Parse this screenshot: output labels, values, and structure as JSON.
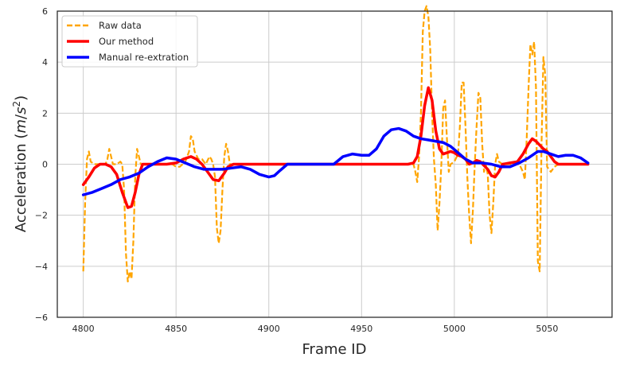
{
  "chart_data": {
    "type": "line",
    "title": "",
    "xlabel": "Frame ID",
    "ylabel_main": "Acceleration (",
    "ylabel_unit_m": "m",
    "ylabel_unit_slash": "/",
    "ylabel_unit_s": "s",
    "ylabel_unit_exp": "2",
    "ylabel_close": ")",
    "xlim": [
      4786,
      5085
    ],
    "ylim": [
      -6,
      6
    ],
    "xticks": [
      4800,
      4850,
      4900,
      4950,
      5000,
      5050
    ],
    "yticks": [
      -6,
      -4,
      -2,
      0,
      2,
      4,
      6
    ],
    "grid": true,
    "legend_position": "top-left",
    "series": [
      {
        "name": "Raw data",
        "color": "#FFA500",
        "style": "dashed",
        "points": [
          [
            4800,
            -4.2
          ],
          [
            4801,
            -1.5
          ],
          [
            4802,
            0.2
          ],
          [
            4803,
            0.5
          ],
          [
            4804,
            0.1
          ],
          [
            4806,
            0.0
          ],
          [
            4808,
            0.0
          ],
          [
            4812,
            0.0
          ],
          [
            4813,
            0.2
          ],
          [
            4814,
            0.6
          ],
          [
            4815,
            0.3
          ],
          [
            4816,
            0.0
          ],
          [
            4818,
            0.0
          ],
          [
            4820,
            0.1
          ],
          [
            4821,
            0.0
          ],
          [
            4822,
            -1.0
          ],
          [
            4823,
            -3.5
          ],
          [
            4824,
            -4.6
          ],
          [
            4825,
            -4.2
          ],
          [
            4826,
            -4.5
          ],
          [
            4827,
            -3.0
          ],
          [
            4828,
            -0.5
          ],
          [
            4829,
            0.6
          ],
          [
            4830,
            0.3
          ],
          [
            4831,
            0.0
          ],
          [
            4835,
            0.0
          ],
          [
            4848,
            0.0
          ],
          [
            4850,
            -0.1
          ],
          [
            4852,
            -0.1
          ],
          [
            4855,
            0.1
          ],
          [
            4857,
            0.5
          ],
          [
            4858,
            1.1
          ],
          [
            4859,
            1.0
          ],
          [
            4860,
            0.5
          ],
          [
            4862,
            0.2
          ],
          [
            4864,
            0.2
          ],
          [
            4866,
            0.0
          ],
          [
            4868,
            0.3
          ],
          [
            4869,
            0.2
          ],
          [
            4870,
            0.0
          ],
          [
            4871,
            -0.5
          ],
          [
            4872,
            -2.5
          ],
          [
            4873,
            -3.1
          ],
          [
            4874,
            -2.6
          ],
          [
            4875,
            -1.0
          ],
          [
            4876,
            0.3
          ],
          [
            4877,
            0.8
          ],
          [
            4878,
            0.5
          ],
          [
            4879,
            0.0
          ],
          [
            4885,
            0.0
          ],
          [
            4978,
            0.0
          ],
          [
            4979,
            -0.3
          ],
          [
            4980,
            -0.7
          ],
          [
            4981,
            0.3
          ],
          [
            4982,
            2.0
          ],
          [
            4983,
            5.2
          ],
          [
            4984,
            6.0
          ],
          [
            4985,
            6.2
          ],
          [
            4986,
            5.8
          ],
          [
            4987,
            4.5
          ],
          [
            4988,
            2.0
          ],
          [
            4989,
            0.2
          ],
          [
            4990,
            -0.8
          ],
          [
            4991,
            -2.6
          ],
          [
            4992,
            -1.5
          ],
          [
            4993,
            0.0
          ],
          [
            4994,
            2.2
          ],
          [
            4995,
            2.5
          ],
          [
            4996,
            1.0
          ],
          [
            4997,
            -0.3
          ],
          [
            4998,
            0.0
          ],
          [
            5000,
            0.1
          ],
          [
            5002,
            0.4
          ],
          [
            5003,
            1.5
          ],
          [
            5004,
            3.2
          ],
          [
            5005,
            3.2
          ],
          [
            5006,
            1.5
          ],
          [
            5007,
            -0.5
          ],
          [
            5008,
            -2.0
          ],
          [
            5009,
            -3.1
          ],
          [
            5010,
            -1.8
          ],
          [
            5011,
            0.0
          ],
          [
            5012,
            1.5
          ],
          [
            5013,
            2.8
          ],
          [
            5014,
            2.6
          ],
          [
            5015,
            0.8
          ],
          [
            5016,
            -0.3
          ],
          [
            5017,
            0.0
          ],
          [
            5018,
            -0.4
          ],
          [
            5019,
            -2.0
          ],
          [
            5020,
            -2.7
          ],
          [
            5021,
            -1.5
          ],
          [
            5022,
            0.0
          ],
          [
            5023,
            0.4
          ],
          [
            5024,
            0.1
          ],
          [
            5026,
            0.0
          ],
          [
            5030,
            0.0
          ],
          [
            5035,
            0.0
          ],
          [
            5037,
            -0.3
          ],
          [
            5038,
            -0.6
          ],
          [
            5039,
            1.0
          ],
          [
            5040,
            3.0
          ],
          [
            5041,
            4.7
          ],
          [
            5042,
            4.3
          ],
          [
            5043,
            4.8
          ],
          [
            5044,
            3.0
          ],
          [
            5045,
            -3.8
          ],
          [
            5046,
            -4.2
          ],
          [
            5047,
            0.8
          ],
          [
            5048,
            4.2
          ],
          [
            5049,
            3.5
          ],
          [
            5050,
            -0.1
          ],
          [
            5052,
            -0.3
          ],
          [
            5054,
            -0.1
          ],
          [
            5056,
            0.0
          ],
          [
            5060,
            0.0
          ]
        ]
      },
      {
        "name": "Our method",
        "color": "#FF0000",
        "style": "solid",
        "points": [
          [
            4800,
            -0.8
          ],
          [
            4803,
            -0.5
          ],
          [
            4806,
            -0.15
          ],
          [
            4809,
            0.0
          ],
          [
            4812,
            0.0
          ],
          [
            4815,
            -0.1
          ],
          [
            4818,
            -0.4
          ],
          [
            4821,
            -1.1
          ],
          [
            4824,
            -1.7
          ],
          [
            4826,
            -1.65
          ],
          [
            4828,
            -1.1
          ],
          [
            4830,
            -0.4
          ],
          [
            4832,
            0.0
          ],
          [
            4836,
            0.0
          ],
          [
            4845,
            0.0
          ],
          [
            4850,
            0.05
          ],
          [
            4854,
            0.2
          ],
          [
            4858,
            0.3
          ],
          [
            4861,
            0.2
          ],
          [
            4864,
            0.0
          ],
          [
            4867,
            -0.3
          ],
          [
            4870,
            -0.6
          ],
          [
            4873,
            -0.65
          ],
          [
            4876,
            -0.35
          ],
          [
            4878,
            -0.1
          ],
          [
            4881,
            0.0
          ],
          [
            4890,
            0.0
          ],
          [
            4975,
            0.0
          ],
          [
            4978,
            0.05
          ],
          [
            4980,
            0.3
          ],
          [
            4982,
            1.1
          ],
          [
            4984,
            2.3
          ],
          [
            4986,
            3.0
          ],
          [
            4988,
            2.5
          ],
          [
            4990,
            1.3
          ],
          [
            4992,
            0.6
          ],
          [
            4994,
            0.4
          ],
          [
            4996,
            0.45
          ],
          [
            4998,
            0.5
          ],
          [
            5000,
            0.45
          ],
          [
            5002,
            0.35
          ],
          [
            5004,
            0.3
          ],
          [
            5006,
            0.2
          ],
          [
            5008,
            0.0
          ],
          [
            5010,
            0.05
          ],
          [
            5012,
            0.15
          ],
          [
            5014,
            0.1
          ],
          [
            5016,
            -0.05
          ],
          [
            5018,
            -0.2
          ],
          [
            5020,
            -0.45
          ],
          [
            5022,
            -0.5
          ],
          [
            5024,
            -0.3
          ],
          [
            5026,
            0.0
          ],
          [
            5030,
            0.05
          ],
          [
            5034,
            0.1
          ],
          [
            5037,
            0.4
          ],
          [
            5040,
            0.8
          ],
          [
            5042,
            1.0
          ],
          [
            5044,
            0.9
          ],
          [
            5046,
            0.75
          ],
          [
            5048,
            0.6
          ],
          [
            5050,
            0.5
          ],
          [
            5052,
            0.3
          ],
          [
            5054,
            0.1
          ],
          [
            5056,
            0.0
          ],
          [
            5060,
            0.0
          ],
          [
            5072,
            0.0
          ]
        ]
      },
      {
        "name": "Manual re-extration",
        "color": "#0000FF",
        "style": "solid",
        "points": [
          [
            4800,
            -1.2
          ],
          [
            4805,
            -1.1
          ],
          [
            4810,
            -0.95
          ],
          [
            4815,
            -0.8
          ],
          [
            4820,
            -0.6
          ],
          [
            4825,
            -0.5
          ],
          [
            4830,
            -0.35
          ],
          [
            4835,
            -0.1
          ],
          [
            4840,
            0.1
          ],
          [
            4845,
            0.25
          ],
          [
            4850,
            0.2
          ],
          [
            4855,
            0.05
          ],
          [
            4860,
            -0.1
          ],
          [
            4865,
            -0.2
          ],
          [
            4870,
            -0.2
          ],
          [
            4875,
            -0.2
          ],
          [
            4880,
            -0.15
          ],
          [
            4885,
            -0.1
          ],
          [
            4890,
            -0.2
          ],
          [
            4895,
            -0.4
          ],
          [
            4900,
            -0.5
          ],
          [
            4903,
            -0.45
          ],
          [
            4906,
            -0.25
          ],
          [
            4910,
            0.0
          ],
          [
            4915,
            0.0
          ],
          [
            4920,
            0.0
          ],
          [
            4930,
            0.0
          ],
          [
            4935,
            0.0
          ],
          [
            4940,
            0.3
          ],
          [
            4945,
            0.4
          ],
          [
            4950,
            0.35
          ],
          [
            4954,
            0.35
          ],
          [
            4958,
            0.6
          ],
          [
            4962,
            1.1
          ],
          [
            4966,
            1.35
          ],
          [
            4970,
            1.4
          ],
          [
            4974,
            1.3
          ],
          [
            4978,
            1.1
          ],
          [
            4982,
            1.0
          ],
          [
            4986,
            0.95
          ],
          [
            4990,
            0.9
          ],
          [
            4994,
            0.85
          ],
          [
            4998,
            0.7
          ],
          [
            5002,
            0.45
          ],
          [
            5006,
            0.2
          ],
          [
            5010,
            0.05
          ],
          [
            5015,
            0.05
          ],
          [
            5020,
            0.0
          ],
          [
            5025,
            -0.1
          ],
          [
            5030,
            -0.1
          ],
          [
            5035,
            0.05
          ],
          [
            5040,
            0.25
          ],
          [
            5045,
            0.5
          ],
          [
            5048,
            0.5
          ],
          [
            5052,
            0.4
          ],
          [
            5056,
            0.3
          ],
          [
            5060,
            0.35
          ],
          [
            5064,
            0.35
          ],
          [
            5068,
            0.25
          ],
          [
            5072,
            0.05
          ]
        ]
      }
    ]
  }
}
